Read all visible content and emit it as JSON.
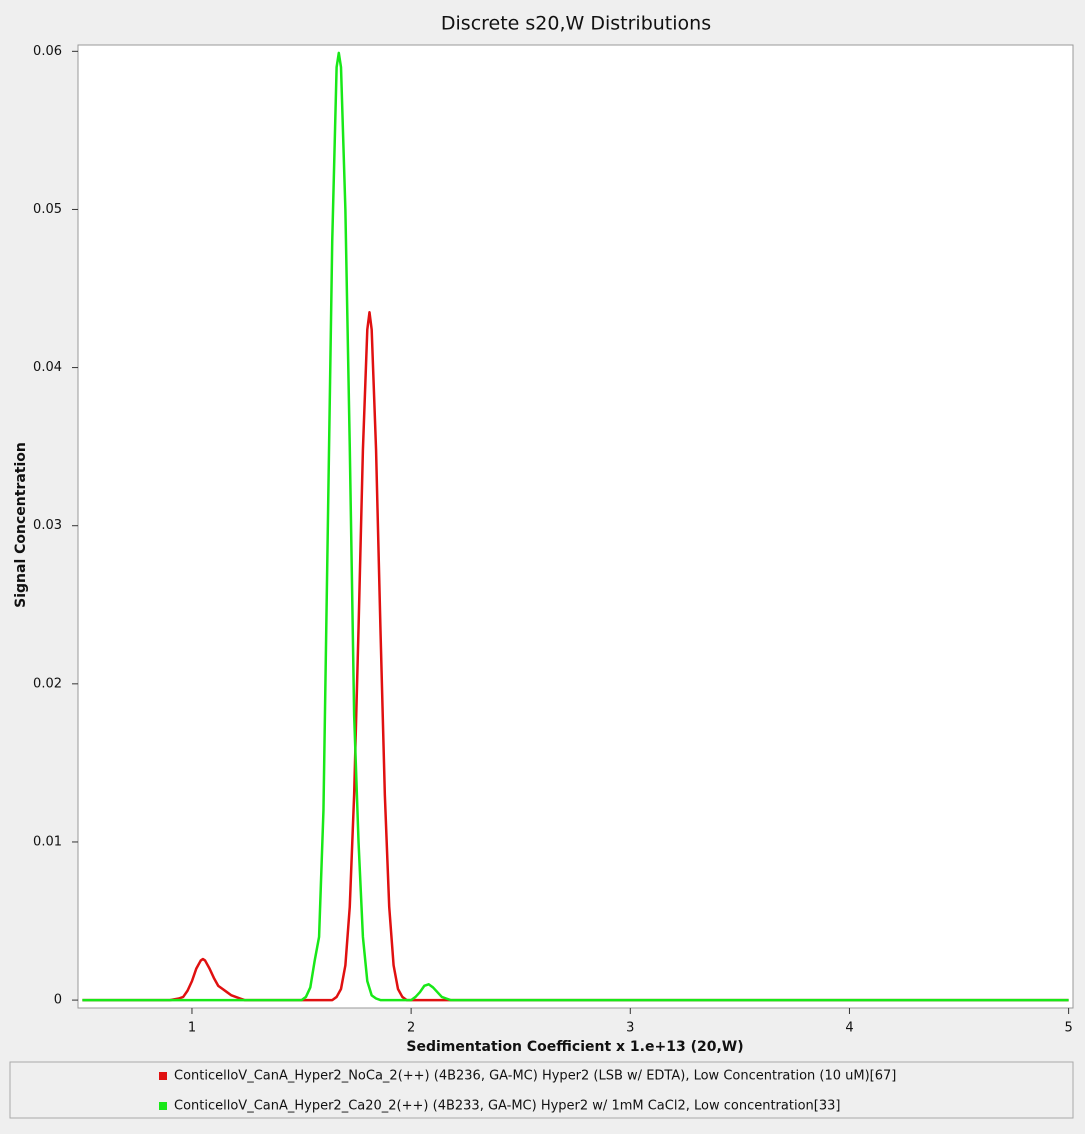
{
  "chart_data": {
    "type": "line",
    "title": "Discrete s20,W Distributions",
    "x_label": "Sedimentation Coefficient x 1.e+13 (20,W)",
    "y_label": "Signal Concentration",
    "xlim": [
      0.48,
      5.02
    ],
    "xticks": [
      1,
      2,
      3,
      4,
      5
    ],
    "ylim": [
      -0.0005,
      0.0604
    ],
    "yticks": [
      0,
      0.01,
      0.02,
      0.03,
      0.04,
      0.05,
      0.06
    ],
    "series": [
      {
        "name": "ConticelloV_CanA_Hyper2_NoCa_2(++) (4B236, GA-MC) Hyper2 (LSB w/ EDTA), Low Concentration (10 uM)[67]",
        "color": "#e01010",
        "x": [
          0.5,
          0.9,
          0.94,
          0.96,
          0.98,
          1.0,
          1.02,
          1.04,
          1.05,
          1.06,
          1.08,
          1.1,
          1.12,
          1.14,
          1.16,
          1.18,
          1.2,
          1.22,
          1.24,
          1.64,
          1.66,
          1.68,
          1.7,
          1.72,
          1.74,
          1.76,
          1.78,
          1.8,
          1.81,
          1.82,
          1.84,
          1.86,
          1.88,
          1.9,
          1.92,
          1.94,
          1.96,
          1.98,
          5.0
        ],
        "values": [
          0,
          0,
          0.0001,
          0.0002,
          0.0006,
          0.0012,
          0.002,
          0.0025,
          0.0026,
          0.0025,
          0.002,
          0.0014,
          0.0009,
          0.0007,
          0.0005,
          0.0003,
          0.0002,
          0.0001,
          0,
          0,
          0.0002,
          0.0007,
          0.0022,
          0.0059,
          0.013,
          0.0235,
          0.0348,
          0.0424,
          0.0435,
          0.0424,
          0.0348,
          0.0235,
          0.013,
          0.0059,
          0.0022,
          0.0007,
          0.0002,
          0,
          0
        ]
      },
      {
        "name": "ConticelloV_CanA_Hyper2_Ca20_2(++) (4B233, GA-MC) Hyper2 w/ 1mM CaCl2, Low concentration[33]",
        "color": "#18e818",
        "x": [
          0.5,
          1.5,
          1.52,
          1.54,
          1.56,
          1.58,
          1.6,
          1.62,
          1.64,
          1.66,
          1.67,
          1.68,
          1.7,
          1.72,
          1.74,
          1.76,
          1.78,
          1.8,
          1.82,
          1.84,
          1.86,
          2.0,
          2.02,
          2.04,
          2.06,
          2.08,
          2.1,
          2.12,
          2.14,
          2.16,
          2.18,
          5.0
        ],
        "values": [
          0,
          0,
          0.0002,
          0.0008,
          0.0025,
          0.004,
          0.012,
          0.03,
          0.048,
          0.059,
          0.0599,
          0.059,
          0.05,
          0.035,
          0.018,
          0.01,
          0.004,
          0.0012,
          0.0003,
          0.0001,
          0,
          0,
          0.0002,
          0.0005,
          0.0009,
          0.001,
          0.0008,
          0.0005,
          0.0002,
          0.0001,
          0,
          0
        ]
      }
    ]
  }
}
